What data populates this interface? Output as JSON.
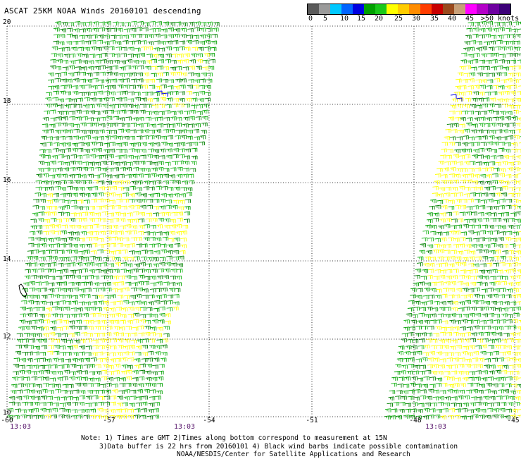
{
  "title": "ASCAT 25KM NOAA Winds 20160101 descending",
  "colorbar": {
    "colors": [
      "#5a5a5a",
      "#9a9a9a",
      "#00c8ff",
      "#0064ff",
      "#0000e0",
      "#00a000",
      "#19c819",
      "#ffff00",
      "#ffcc00",
      "#ff8c00",
      "#ff3c00",
      "#c80000",
      "#9a4a1e",
      "#c8a078",
      "#ff00ff",
      "#b400c8",
      "#6e00a0",
      "#3c0078"
    ],
    "labels": [
      "0",
      "5",
      "10",
      "15",
      "20",
      "25",
      "30",
      "35",
      "40",
      "45",
      ">50 knots"
    ]
  },
  "map": {
    "lat_labels": [
      "20",
      "18",
      "16",
      "14",
      "12",
      "10"
    ],
    "lon_labels": [
      "-60",
      "-57",
      "-54",
      "-51",
      "-48",
      "-45"
    ],
    "time_labels": [
      "13:03",
      "13:03",
      "13:03"
    ]
  },
  "note": {
    "line1": "Note: 1) Times are GMT 2)Times along bottom correspond to measurement at 15N",
    "line2": "3)Data buffer is 22 hrs from 20160101 4) Black wind barbs indicate possible contamination",
    "line3": "NOAA/NESDIS/Center for Satellite Applications and Research"
  }
}
